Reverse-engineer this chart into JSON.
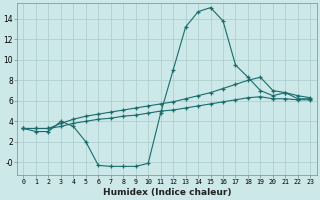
{
  "xlabel": "Humidex (Indice chaleur)",
  "xlim": [
    -0.5,
    23.5
  ],
  "ylim": [
    -1.2,
    15.5
  ],
  "yticks": [
    0,
    2,
    4,
    6,
    8,
    10,
    12,
    14
  ],
  "ytick_labels": [
    "-0",
    "2",
    "4",
    "6",
    "8",
    "10",
    "12",
    "14"
  ],
  "xticks": [
    0,
    1,
    2,
    3,
    4,
    5,
    6,
    7,
    8,
    9,
    10,
    11,
    12,
    13,
    14,
    15,
    16,
    17,
    18,
    19,
    20,
    21,
    22,
    23
  ],
  "bg_color": "#cce8e8",
  "grid_color": "#aacccc",
  "line_color": "#1a6b6b",
  "line1_x": [
    0,
    1,
    2,
    3,
    4,
    5,
    6,
    7,
    8,
    9,
    10,
    11,
    12,
    13,
    14,
    15,
    16,
    17,
    18,
    19,
    20,
    21,
    22,
    23
  ],
  "line1_y": [
    3.3,
    3.0,
    3.0,
    4.0,
    3.5,
    2.0,
    -0.3,
    -0.4,
    -0.4,
    -0.4,
    -0.1,
    4.8,
    9.0,
    13.2,
    14.7,
    15.1,
    13.8,
    9.5,
    8.3,
    7.0,
    6.5,
    6.8,
    6.2,
    6.2
  ],
  "line2_x": [
    0,
    1,
    2,
    3,
    4,
    5,
    6,
    7,
    8,
    9,
    10,
    11,
    12,
    13,
    14,
    15,
    16,
    17,
    18,
    19,
    20,
    21,
    22,
    23
  ],
  "line2_y": [
    3.3,
    3.3,
    3.3,
    3.8,
    4.2,
    4.5,
    4.7,
    4.9,
    5.1,
    5.3,
    5.5,
    5.7,
    5.9,
    6.2,
    6.5,
    6.8,
    7.2,
    7.6,
    8.0,
    8.3,
    7.0,
    6.8,
    6.5,
    6.3
  ],
  "line3_x": [
    0,
    1,
    2,
    3,
    4,
    5,
    6,
    7,
    8,
    9,
    10,
    11,
    12,
    13,
    14,
    15,
    16,
    17,
    18,
    19,
    20,
    21,
    22,
    23
  ],
  "line3_y": [
    3.3,
    3.3,
    3.3,
    3.5,
    3.8,
    4.0,
    4.2,
    4.3,
    4.5,
    4.6,
    4.8,
    5.0,
    5.1,
    5.3,
    5.5,
    5.7,
    5.9,
    6.1,
    6.3,
    6.4,
    6.2,
    6.2,
    6.1,
    6.1
  ]
}
